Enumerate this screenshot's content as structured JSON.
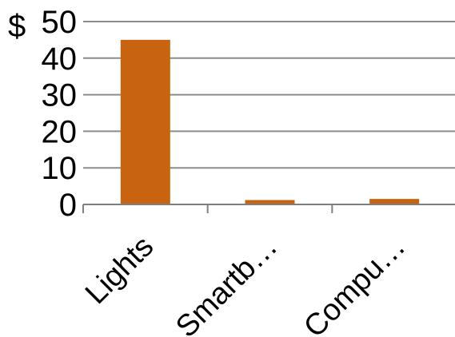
{
  "chart_data": {
    "type": "bar",
    "categories": [
      "Lights",
      "Smartb…",
      "Compu…"
    ],
    "values": [
      45,
      1.2,
      1.5
    ],
    "ylim": [
      0,
      50
    ],
    "yticks": [
      "0",
      "10",
      "20",
      "30",
      "40",
      "50"
    ],
    "y_unit_prefix": "$",
    "title": "",
    "xlabel": "",
    "ylabel": "",
    "grid": true,
    "legend": "none",
    "colors": {
      "bar": "#C8640F",
      "grid": "#8C8C8C",
      "axis": "#7F7F7F",
      "text": "#000000"
    }
  }
}
